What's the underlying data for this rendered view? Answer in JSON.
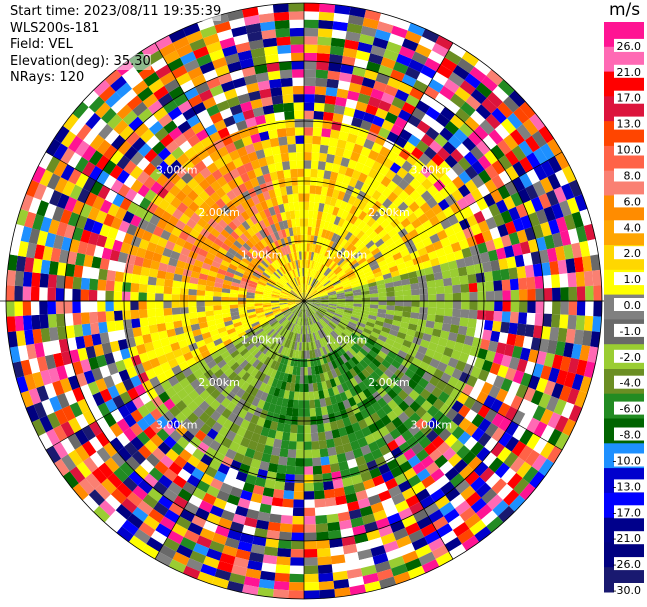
{
  "info": {
    "start_time": "Start time: 2023/08/11 19:35:39",
    "site": "WLS200s-181",
    "field": "Field: VEL",
    "elevation": "Elevation(deg): 35.30",
    "nrays": "NRays: 120"
  },
  "colorbar": {
    "unit": "m/s",
    "ticks": [
      "26.0",
      "21.0",
      "17.0",
      "13.0",
      "10.0",
      "8.0",
      "6.0",
      "4.0",
      "2.0",
      "1.0",
      "0.0",
      "-1.0",
      "-2.0",
      "-4.0",
      "-6.0",
      "-8.0",
      "-10.0",
      "-13.0",
      "-17.0",
      "-21.0",
      "-26.0",
      "-30.0"
    ],
    "colors": [
      "#ff1493",
      "#ff69b4",
      "#ff0000",
      "#dc143c",
      "#ff4500",
      "#ff6347",
      "#fa8072",
      "#ff8c00",
      "#ffa500",
      "#ffd700",
      "#ffff00",
      "#808080",
      "#696969",
      "#9acd32",
      "#6b8e23",
      "#228b22",
      "#006400",
      "#1e90ff",
      "#0000cd",
      "#0000ff",
      "#00008b",
      "#000080",
      "#191970"
    ]
  },
  "chart_data": {
    "type": "heatmap",
    "projection": "polar PPI",
    "nrays": 120,
    "range_ring_labels": [
      "1.00km",
      "2.00km",
      "3.00km"
    ],
    "value_range": [
      -30.0,
      26.0
    ],
    "unit": "m/s"
  }
}
